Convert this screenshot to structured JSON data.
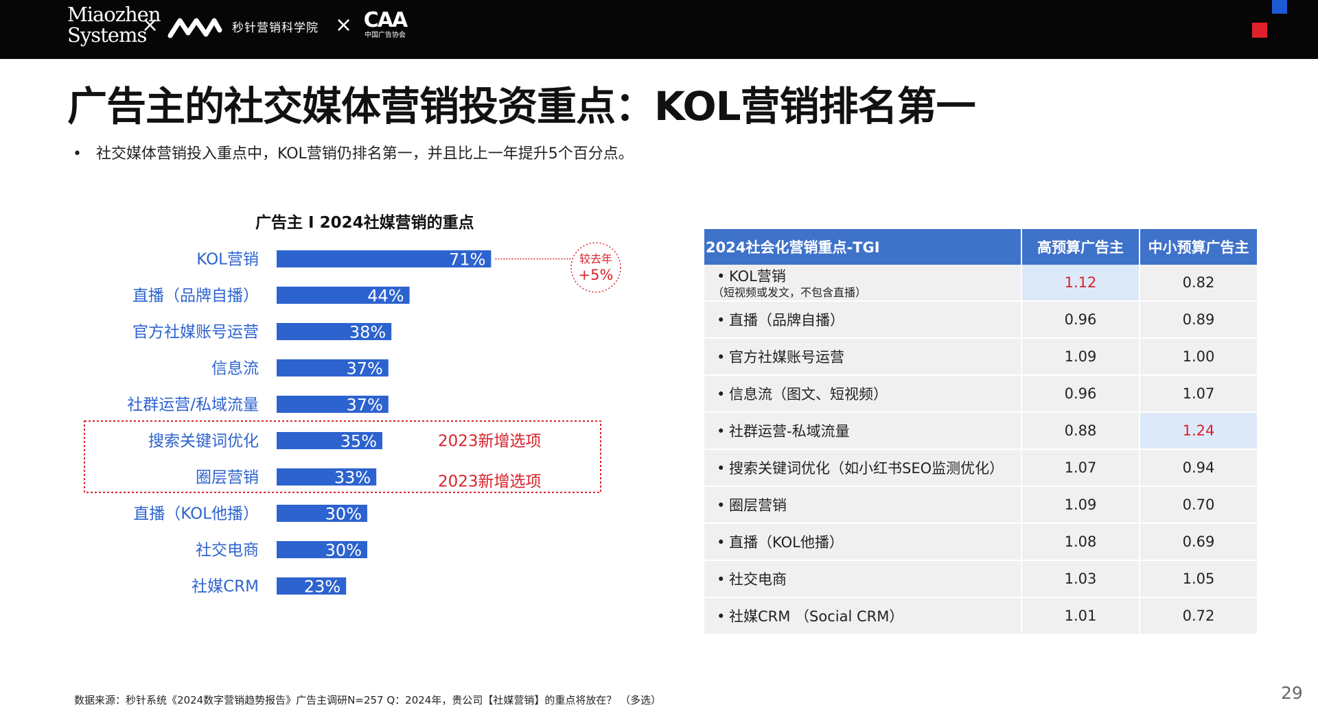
{
  "header": {
    "logo_line1": "Miaozhen",
    "logo_line2": "Systems",
    "logo_reg": "®",
    "separator": "×",
    "academy": "秒针营销科学院",
    "caa_mark": "CAA",
    "caa_sub": "中国广告协会"
  },
  "title": "广告主的社交媒体营销投资重点：KOL营销排名第一",
  "bullet": "社交媒体营销投入重点中，KOL营销仍排名第一，并且比上一年提升5个百分点。",
  "chart_data": {
    "type": "bar",
    "orientation": "horizontal",
    "title": "广告主 I 2024社媒营销的重点",
    "categories": [
      "KOL营销",
      "直播（品牌自播）",
      "官方社媒账号运营",
      "信息流",
      "社群运营/私域流量",
      "搜索关键词优化",
      "圈层营销",
      "直播（KOL他播）",
      "社交电商",
      "社媒CRM"
    ],
    "values": [
      71,
      44,
      38,
      37,
      37,
      35,
      33,
      30,
      30,
      23
    ],
    "value_labels": [
      "71%",
      "44%",
      "38%",
      "37%",
      "37%",
      "35%",
      "33%",
      "30%",
      "30%",
      "23%"
    ],
    "bar_color": "#2d63cf",
    "annotation_yoy_label": "较去年",
    "annotation_yoy_value": "+5%",
    "new_option_label": "2023新增选项",
    "new_option_color": "#d8222b"
  },
  "table": {
    "headers": [
      "2024社会化营销重点-TGI",
      "高预算广告主",
      "中小预算广告主"
    ],
    "rows": [
      {
        "label": "KOL营销",
        "sub": "（短视频或发文，不包含直播）",
        "high": "1.12",
        "low": "0.82"
      },
      {
        "label": "直播（品牌自播）",
        "high": "0.96",
        "low": "0.89"
      },
      {
        "label": "官方社媒账号运营",
        "high": "1.09",
        "low": "1.00"
      },
      {
        "label": "信息流（图文、短视频）",
        "high": "0.96",
        "low": "1.07"
      },
      {
        "label": "社群运营-私域流量",
        "high": "0.88",
        "low": "1.24"
      },
      {
        "label": "搜索关键词优化（如小红书SEO监测优化）",
        "high": "1.07",
        "low": "0.94"
      },
      {
        "label": "圈层营销",
        "high": "1.09",
        "low": "0.70"
      },
      {
        "label": "直播（KOL他播）",
        "high": "1.08",
        "low": "0.69"
      },
      {
        "label": "社交电商",
        "high": "1.03",
        "low": "1.05"
      },
      {
        "label": "社媒CRM （Social CRM）",
        "high": "1.01",
        "low": "0.72"
      }
    ],
    "bullet_char": "•"
  },
  "footer": "数据来源：秒针系统《2024数字营销趋势报告》广告主调研N=257    Q：2024年，贵公司【社媒营销】的重点将放在？ （多选）",
  "page_number": "29"
}
